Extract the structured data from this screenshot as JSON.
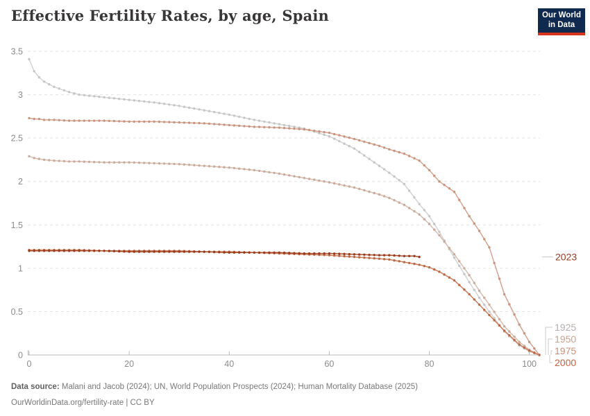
{
  "header": {
    "title": "Effective Fertility Rates, by age, Spain"
  },
  "logo": {
    "line1": "Our World",
    "line2": "in Data",
    "navy": "#10294e",
    "red": "#d8351e"
  },
  "footer": {
    "source_label": "Data source:",
    "source_text": " Malani and Jacob (2024); UN, World Population Prospects (2024); Human Mortality Database (2025)",
    "link_text": "OurWorldinData.org/fertility-rate | CC BY"
  },
  "chart_data": {
    "type": "line",
    "title": "Effective Fertility Rates, by age, Spain",
    "xlabel": "",
    "ylabel": "",
    "xlim": [
      0,
      102
    ],
    "ylim": [
      0,
      3.5
    ],
    "grid": "horizontal-dashed",
    "legend_position": "right-edge-end-labels",
    "x_ticks": [
      0,
      20,
      40,
      60,
      80,
      100
    ],
    "y_ticks": {
      "values": [
        0,
        0.5,
        1,
        1.5,
        2,
        2.5,
        3,
        3.5
      ],
      "labels": [
        "0",
        "0.5",
        "1",
        "1.5",
        "2",
        "2.5",
        "3",
        "3.5"
      ]
    },
    "series": [
      {
        "name": "1925",
        "line_color": "#d3d3d3",
        "dot_color": "#c6c6c6",
        "label_color": "#b5b0ae",
        "x": [
          0,
          1,
          2,
          3,
          5,
          8,
          10,
          15,
          20,
          25,
          30,
          35,
          40,
          45,
          50,
          55,
          60,
          65,
          70,
          72,
          75,
          78,
          80,
          82,
          85,
          88,
          90,
          92,
          95,
          98,
          100,
          102
        ],
        "values": [
          3.41,
          3.27,
          3.2,
          3.15,
          3.09,
          3.03,
          3.0,
          2.97,
          2.94,
          2.91,
          2.87,
          2.82,
          2.77,
          2.71,
          2.66,
          2.61,
          2.52,
          2.38,
          2.18,
          2.1,
          1.97,
          1.74,
          1.6,
          1.42,
          1.12,
          0.84,
          0.66,
          0.5,
          0.27,
          0.11,
          0.04,
          0
        ]
      },
      {
        "name": "1950",
        "line_color": "#d7bdb0",
        "dot_color": "#cbaa9a",
        "label_color": "#c5a291",
        "x": [
          0,
          1,
          2,
          3,
          5,
          8,
          10,
          15,
          20,
          25,
          30,
          35,
          40,
          45,
          50,
          55,
          60,
          65,
          70,
          72,
          75,
          78,
          80,
          82,
          85,
          88,
          90,
          92,
          95,
          98,
          100,
          102
        ],
        "values": [
          2.29,
          2.27,
          2.26,
          2.25,
          2.24,
          2.23,
          2.23,
          2.22,
          2.22,
          2.21,
          2.2,
          2.18,
          2.16,
          2.13,
          2.09,
          2.04,
          1.99,
          1.93,
          1.85,
          1.81,
          1.73,
          1.62,
          1.51,
          1.38,
          1.16,
          0.92,
          0.74,
          0.58,
          0.33,
          0.15,
          0.06,
          0
        ]
      },
      {
        "name": "1975",
        "line_color": "#d5a492",
        "dot_color": "#c9937e",
        "label_color": "#c98f78",
        "x": [
          0,
          1,
          2,
          3,
          5,
          8,
          10,
          15,
          20,
          25,
          30,
          35,
          40,
          45,
          50,
          55,
          60,
          65,
          70,
          72,
          75,
          78,
          80,
          82,
          85,
          88,
          90,
          92,
          95,
          98,
          100,
          102
        ],
        "values": [
          2.73,
          2.72,
          2.72,
          2.71,
          2.71,
          2.7,
          2.7,
          2.7,
          2.69,
          2.69,
          2.68,
          2.67,
          2.65,
          2.63,
          2.62,
          2.6,
          2.56,
          2.49,
          2.41,
          2.37,
          2.32,
          2.24,
          2.13,
          2.0,
          1.88,
          1.6,
          1.43,
          1.24,
          0.7,
          0.35,
          0.15,
          0
        ]
      },
      {
        "name": "2000",
        "line_color": "#cb7d5d",
        "dot_color": "#bd6845",
        "label_color": "#bc6442",
        "x": [
          0,
          1,
          2,
          3,
          5,
          8,
          10,
          15,
          20,
          25,
          30,
          35,
          40,
          45,
          50,
          55,
          60,
          65,
          70,
          72,
          75,
          78,
          80,
          82,
          85,
          88,
          90,
          92,
          95,
          98,
          100,
          102
        ],
        "values": [
          1.21,
          1.21,
          1.21,
          1.21,
          1.21,
          1.21,
          1.21,
          1.2,
          1.2,
          1.2,
          1.2,
          1.19,
          1.19,
          1.18,
          1.17,
          1.16,
          1.15,
          1.13,
          1.11,
          1.1,
          1.07,
          1.04,
          1.01,
          0.96,
          0.86,
          0.7,
          0.58,
          0.46,
          0.28,
          0.12,
          0.05,
          0
        ]
      },
      {
        "name": "2023",
        "line_color": "#a85130",
        "dot_color": "#9d3a1b",
        "label_color": "#9c3b1e",
        "x": [
          0,
          1,
          2,
          3,
          5,
          8,
          10,
          15,
          20,
          25,
          30,
          35,
          40,
          45,
          50,
          55,
          60,
          65,
          70,
          72,
          75,
          77,
          78
        ],
        "values": [
          1.2,
          1.2,
          1.2,
          1.2,
          1.2,
          1.2,
          1.2,
          1.2,
          1.19,
          1.19,
          1.19,
          1.19,
          1.18,
          1.18,
          1.18,
          1.17,
          1.17,
          1.16,
          1.15,
          1.15,
          1.14,
          1.14,
          1.13
        ]
      }
    ]
  }
}
